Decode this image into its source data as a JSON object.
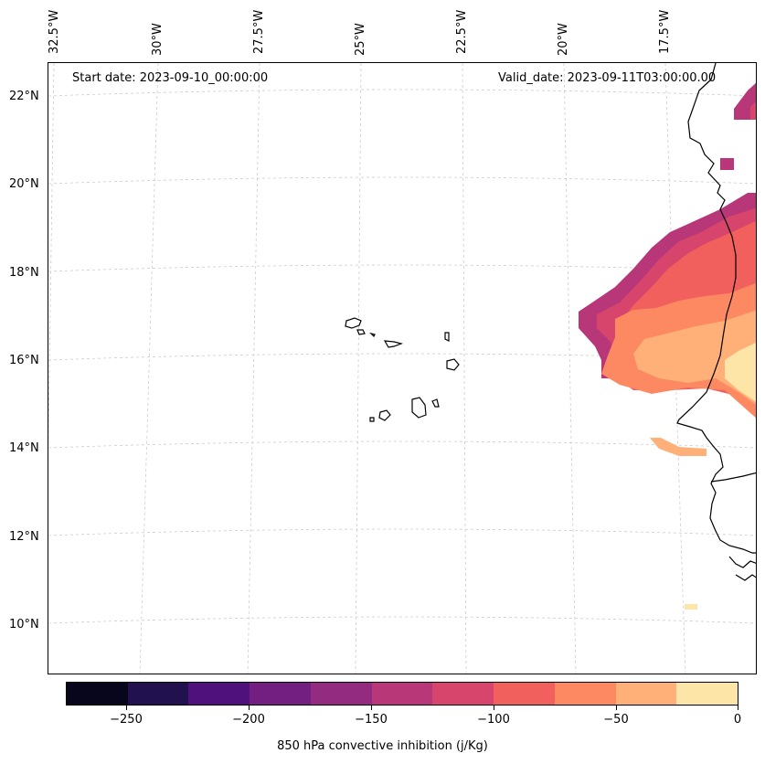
{
  "header": {
    "start_date": "Start date: 2023-09-10_00:00:00",
    "valid_date": "Valid_date: 2023-09-11T03:00:00.00"
  },
  "map": {
    "lat_labels": [
      "22°N",
      "20°N",
      "18°N",
      "16°N",
      "14°N",
      "12°N",
      "10°N"
    ],
    "lon_labels": [
      "32.5°W",
      "30°W",
      "27.5°W",
      "25°W",
      "22.5°W",
      "20°W",
      "17.5°W"
    ],
    "land_color": "#ffffff",
    "coastline_color": "#000000",
    "gridline_color": "#cccccc"
  },
  "colorbar": {
    "title": "850 hPa convective inhibition (j/Kg)",
    "tick_labels": [
      "−250",
      "−200",
      "−150",
      "−100",
      "−50",
      "0"
    ],
    "colors": [
      "#07061d",
      "#21114e",
      "#4f117b",
      "#721f81",
      "#932b80",
      "#b73779",
      "#d8456c",
      "#f1605d",
      "#fc8961",
      "#feb078",
      "#fde5a7"
    ],
    "levels": [
      -275,
      -250,
      -225,
      -200,
      -175,
      -150,
      -125,
      -100,
      -75,
      -50,
      -25,
      0
    ],
    "colormap": "magma"
  }
}
